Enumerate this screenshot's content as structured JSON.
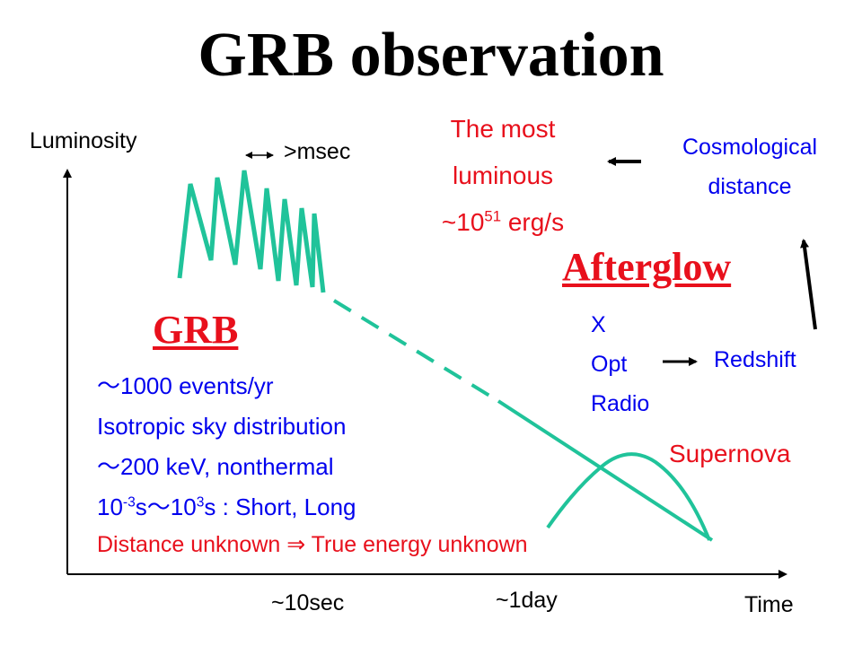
{
  "title": "GRB observation",
  "axes": {
    "y_label": "Luminosity",
    "x_label": "Time",
    "x_ticks": [
      "~10sec",
      "~1day"
    ]
  },
  "burst": {
    "duration_label": ">msec"
  },
  "luminous": {
    "line1": "The most",
    "line2": "luminous",
    "prefix": "~10",
    "exponent": "51",
    "unit": " erg/s"
  },
  "cosmological": {
    "line1": "Cosmological",
    "line2": "distance"
  },
  "afterglow": {
    "heading": "Afterglow",
    "bands": [
      "X",
      "Opt",
      "Radio"
    ],
    "result": "Redshift"
  },
  "grb": {
    "heading": "GRB",
    "facts": {
      "events": "～1000 events/yr",
      "isotropic": "Isotropic sky distribution",
      "energy": "～200 keV, nonthermal",
      "dur_a": "10",
      "dur_a_exp": "-3",
      "dur_b": "s～10",
      "dur_b_exp": "3",
      "dur_c": "s : Short, Long"
    },
    "distance_note": "Distance unknown ⇒ True energy unknown"
  },
  "supernova": {
    "label": "Supernova"
  },
  "colors": {
    "curve": "#20c39a",
    "accent_red": "#e8101c",
    "accent_blue": "#0000ee",
    "text": "#000000"
  }
}
